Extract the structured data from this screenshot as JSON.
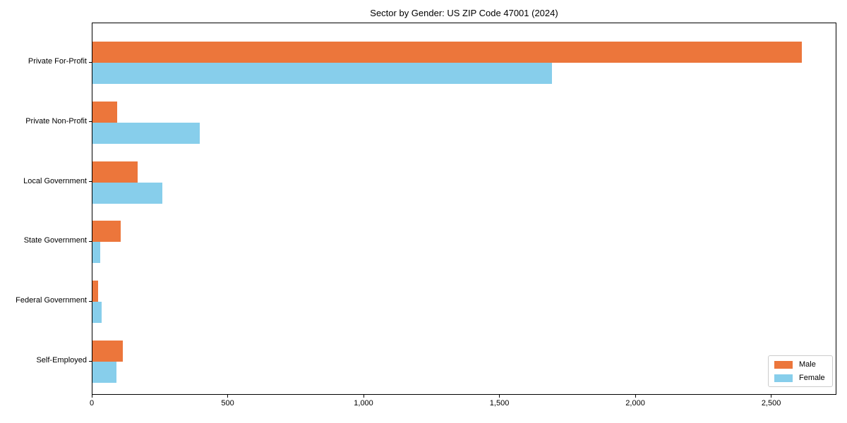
{
  "chart_data": {
    "type": "bar",
    "orientation": "horizontal",
    "title": "Sector by Gender: US ZIP Code 47001 (2024)",
    "categories": [
      "Private For-Profit",
      "Private Non-Profit",
      "Local Government",
      "State Government",
      "Federal Government",
      "Self-Employed"
    ],
    "series": [
      {
        "name": "Male",
        "color": "#ec763b",
        "values": [
          2610,
          90,
          165,
          105,
          20,
          112
        ]
      },
      {
        "name": "Female",
        "color": "#87ceeb",
        "values": [
          1690,
          395,
          256,
          28,
          33,
          88
        ]
      }
    ],
    "xlabel": "",
    "ylabel": "",
    "xlim": [
      0,
      2740
    ],
    "x_ticks": [
      0,
      500,
      1000,
      1500,
      2000,
      2500
    ],
    "x_tick_labels": [
      "0",
      "500",
      "1,000",
      "1,500",
      "2,000",
      "2,500"
    ],
    "grid": false,
    "legend": {
      "position": "lower-right",
      "entries": [
        "Male",
        "Female"
      ]
    }
  }
}
